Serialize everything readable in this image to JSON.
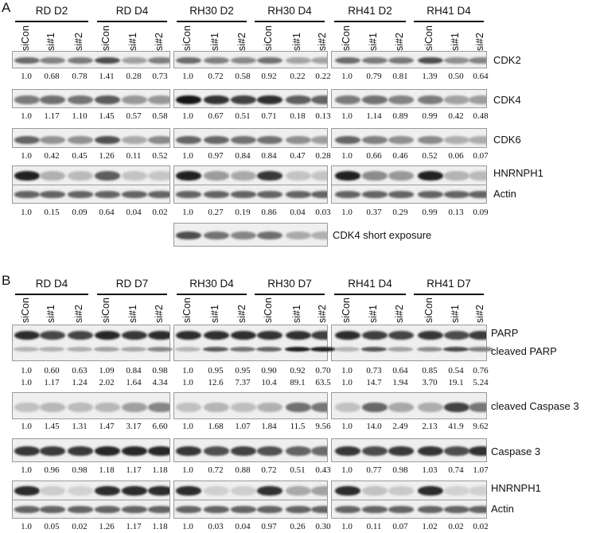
{
  "lanes": [
    "siCon",
    "si#1",
    "si#2"
  ],
  "panelA": {
    "letter": "A",
    "groups": [
      "RD D2",
      "RD D4",
      "RH30 D2",
      "RH30 D4",
      "RH41 D2",
      "RH41 D4"
    ],
    "rows": [
      {
        "label": "CDK2",
        "values": [
          "1.0",
          "0.68",
          "0.78",
          "1.41",
          "0.28",
          "0.73",
          "1.0",
          "0.72",
          "0.58",
          "0.92",
          "0.22",
          "0.22",
          "1.0",
          "0.79",
          "0.81",
          "1.39",
          "0.50",
          "0.64"
        ]
      },
      {
        "label": "CDK4",
        "values": [
          "1.0",
          "1.17",
          "1.10",
          "1.45",
          "0.57",
          "0.58",
          "1.0",
          "0.67",
          "0.51",
          "0.71",
          "0.18",
          "0.13",
          "1.0",
          "1.14",
          "0.89",
          "0.99",
          "0.42",
          "0.48"
        ]
      },
      {
        "label": "CDK6",
        "values": [
          "1.0",
          "0.42",
          "0.45",
          "1.26",
          "0.11",
          "0.52",
          "1.0",
          "0.97",
          "0.84",
          "0.84",
          "0.47",
          "0.28",
          "1.0",
          "0.66",
          "0.46",
          "0.52",
          "0.06",
          "0.07"
        ]
      },
      {
        "label": "HNRNPH1",
        "label2": "Actin",
        "values": [
          "1.0",
          "0.15",
          "0.09",
          "0.64",
          "0.04",
          "0.02",
          "1.0",
          "0.27",
          "0.19",
          "0.86",
          "0.04",
          "0.03",
          "1.0",
          "0.37",
          "0.29",
          "0.99",
          "0.13",
          "0.09"
        ]
      }
    ],
    "short_exposure_label": "CDK4 short exposure"
  },
  "panelB": {
    "letter": "B",
    "groups": [
      "RD D4",
      "RD D7",
      "RH30 D4",
      "RH30 D7",
      "RH41 D4",
      "RH41 D7"
    ],
    "rows": [
      {
        "label": "PARP",
        "label2": "cleaved PARP",
        "values": [
          "1.0",
          "0.60",
          "0.63",
          "1.09",
          "0.84",
          "0.98",
          "1.0",
          "0.95",
          "0.95",
          "0.90",
          "0.92",
          "0.70",
          "1.0",
          "0.73",
          "0.64",
          "0.85",
          "0.54",
          "0.76"
        ],
        "values2": [
          "1.0",
          "1.17",
          "1.24",
          "2.02",
          "1.64",
          "4.34",
          "1.0",
          "12.6",
          "7.37",
          "10.4",
          "89.1",
          "63.5",
          "1.0",
          "14.7",
          "1.94",
          "3.70",
          "19.1",
          "5.24"
        ]
      },
      {
        "label": "cleaved Caspase 3",
        "values": [
          "1.0",
          "1.45",
          "1.31",
          "1.47",
          "3.17",
          "6.60",
          "1.0",
          "1.68",
          "1.07",
          "1.84",
          "11.5",
          "9.56",
          "1.0",
          "14.0",
          "2.49",
          "2.13",
          "41.9",
          "9.62"
        ]
      },
      {
        "label": "Caspase 3",
        "values": [
          "1.0",
          "0.96",
          "0.98",
          "1.18",
          "1.17",
          "1.18",
          "1.0",
          "0.72",
          "0.88",
          "0.72",
          "0.51",
          "0.43",
          "1.0",
          "0.77",
          "0.98",
          "1.03",
          "0.74",
          "1.07"
        ]
      },
      {
        "label": "HNRNPH1",
        "label2": "Actin",
        "values": [
          "1.0",
          "0.05",
          "0.02",
          "1.26",
          "1.17",
          "1.18",
          "1.0",
          "0.03",
          "0.04",
          "0.97",
          "0.26",
          "0.30",
          "1.0",
          "0.11",
          "0.07",
          "1.02",
          "0.02",
          "0.02"
        ]
      }
    ]
  }
}
